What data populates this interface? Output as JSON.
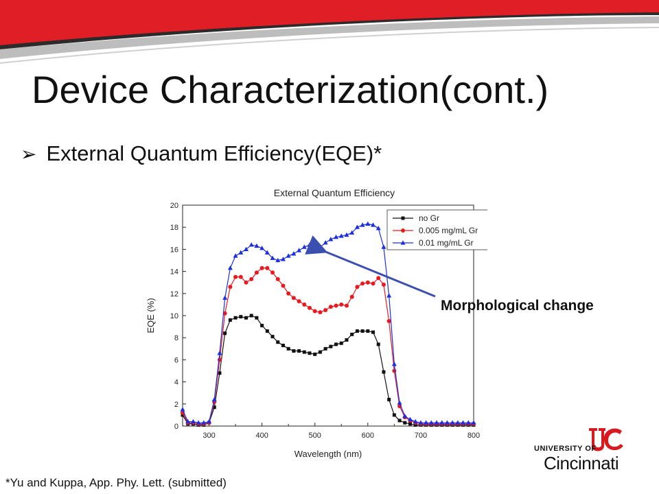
{
  "slide": {
    "title": "Device Characterization(cont.)",
    "bullet": "External Quantum Efficiency(EQE)*",
    "callout": "Morphological change",
    "footnote": "*Yu and Kuppa, App. Phy. Lett. (submitted)",
    "banner_colors": {
      "red": "#e01e26",
      "gray": "#b8b8b8",
      "dark": "#2b2b2b"
    }
  },
  "logo": {
    "university": "UNIVERSITY OF",
    "name": "Cincinnati",
    "monogram": "UC",
    "color": "#d71920"
  },
  "chart_data": {
    "type": "line",
    "title": "External Quantum Efficiency",
    "xlabel": "Wavelength (nm)",
    "ylabel": "EQE (%)",
    "xlim": [
      250,
      800
    ],
    "ylim": [
      0,
      20
    ],
    "xticks": [
      300,
      400,
      500,
      600,
      700,
      800
    ],
    "yticks": [
      0,
      2,
      4,
      6,
      8,
      10,
      12,
      14,
      16,
      18,
      20
    ],
    "legend_position": "top-right",
    "grid": false,
    "x": [
      250,
      260,
      270,
      280,
      290,
      300,
      310,
      320,
      330,
      340,
      350,
      360,
      370,
      380,
      390,
      400,
      410,
      420,
      430,
      440,
      450,
      460,
      470,
      480,
      490,
      500,
      510,
      520,
      530,
      540,
      550,
      560,
      570,
      580,
      590,
      600,
      610,
      620,
      630,
      640,
      650,
      660,
      670,
      680,
      690,
      700,
      710,
      720,
      730,
      740,
      750,
      760,
      770,
      780,
      790,
      800
    ],
    "series": [
      {
        "name": "no Gr",
        "color": "#111111",
        "marker": "square",
        "values": [
          1.0,
          0.2,
          0.2,
          0.1,
          0.1,
          0.3,
          1.7,
          4.8,
          8.4,
          9.6,
          9.8,
          9.9,
          9.8,
          10.0,
          9.8,
          9.1,
          8.6,
          8.1,
          7.6,
          7.3,
          7.0,
          6.8,
          6.8,
          6.7,
          6.6,
          6.5,
          6.7,
          7.0,
          7.2,
          7.4,
          7.5,
          7.8,
          8.3,
          8.6,
          8.6,
          8.6,
          8.5,
          7.4,
          4.9,
          2.4,
          1.0,
          0.5,
          0.3,
          0.2,
          0.1,
          0.1,
          0.1,
          0.1,
          0.1,
          0.1,
          0.1,
          0.1,
          0.1,
          0.1,
          0.1,
          0.1
        ]
      },
      {
        "name": "0.005 mg/mL Gr",
        "color": "#e8191f",
        "marker": "circle",
        "values": [
          1.2,
          0.3,
          0.3,
          0.2,
          0.2,
          0.3,
          2.2,
          6.0,
          10.2,
          12.6,
          13.5,
          13.5,
          13.0,
          13.3,
          13.9,
          14.3,
          14.3,
          13.9,
          13.3,
          12.7,
          12.0,
          11.6,
          11.3,
          11.0,
          10.7,
          10.4,
          10.3,
          10.5,
          10.8,
          10.9,
          11.0,
          10.9,
          11.7,
          12.6,
          12.9,
          13.0,
          12.9,
          13.4,
          12.8,
          9.5,
          5.0,
          1.8,
          0.8,
          0.5,
          0.3,
          0.2,
          0.2,
          0.2,
          0.2,
          0.2,
          0.2,
          0.2,
          0.2,
          0.2,
          0.2,
          0.2
        ]
      },
      {
        "name": "0.01 mg/mL Gr",
        "color": "#1b2ee0",
        "marker": "triangle",
        "values": [
          1.5,
          0.4,
          0.4,
          0.3,
          0.3,
          0.4,
          2.4,
          6.6,
          11.6,
          14.3,
          15.4,
          15.7,
          16.0,
          16.4,
          16.3,
          16.1,
          15.7,
          15.2,
          15.0,
          15.1,
          15.4,
          15.6,
          15.9,
          16.2,
          16.4,
          16.1,
          16.2,
          16.6,
          16.9,
          17.1,
          17.2,
          17.3,
          17.5,
          18.0,
          18.2,
          18.3,
          18.2,
          17.9,
          16.2,
          11.8,
          5.6,
          2.1,
          0.9,
          0.6,
          0.4,
          0.3,
          0.3,
          0.3,
          0.3,
          0.3,
          0.3,
          0.3,
          0.3,
          0.3,
          0.3,
          0.3
        ]
      }
    ]
  }
}
